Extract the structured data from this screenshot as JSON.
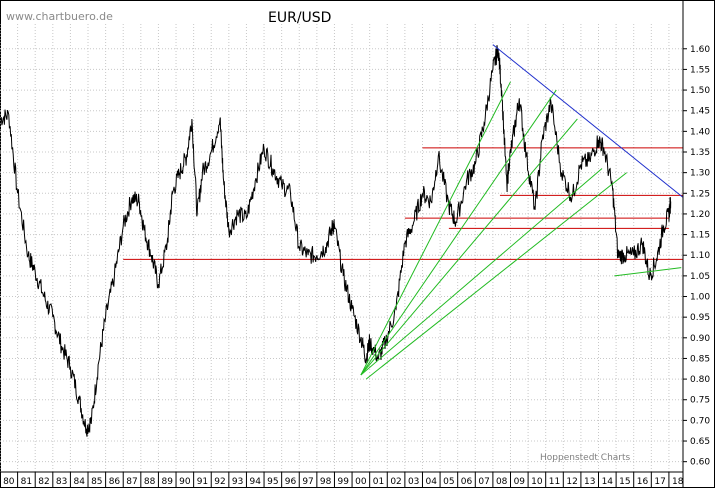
{
  "watermark": "www.chartbuero.de",
  "credit": "Hoppenstedt Charts",
  "colors": {
    "background": "#ffffff",
    "grid": "#c8c8c8",
    "price_line": "#000000",
    "support_resistance": "#cc0000",
    "fan_lines": "#22bb22",
    "downtrend": "#1f2fcc"
  },
  "chart_data": {
    "type": "line",
    "title": "EUR/USD",
    "xlabel": "",
    "ylabel": "",
    "ylim": [
      0.575,
      1.66
    ],
    "xlim": [
      1980,
      2018.8
    ],
    "grid": true,
    "y_axis_side": "right",
    "x_ticks": [
      "80",
      "81",
      "82",
      "83",
      "84",
      "85",
      "86",
      "87",
      "88",
      "89",
      "90",
      "91",
      "92",
      "93",
      "94",
      "95",
      "96",
      "97",
      "98",
      "99",
      "00",
      "01",
      "02",
      "03",
      "04",
      "05",
      "06",
      "07",
      "08",
      "09",
      "10",
      "11",
      "12",
      "13",
      "14",
      "15",
      "16",
      "17",
      "18"
    ],
    "y_ticks": [
      "0.60",
      "0.65",
      "0.70",
      "0.75",
      "0.80",
      "0.85",
      "0.90",
      "0.95",
      "1.00",
      "1.05",
      "1.10",
      "1.15",
      "1.20",
      "1.25",
      "1.30",
      "1.35",
      "1.40",
      "1.45",
      "1.50",
      "1.55",
      "1.60"
    ],
    "series": [
      {
        "x": [
          1980.0,
          1980.5,
          1981.0,
          1981.6,
          1982.0,
          1982.5,
          1983.0,
          1983.5,
          1984.0,
          1984.5,
          1984.9,
          1985.2,
          1985.6,
          1986.0,
          1986.5,
          1987.0,
          1987.5,
          1987.9,
          1988.2,
          1988.6,
          1989.0,
          1989.5,
          1989.8,
          1990.2,
          1990.6,
          1990.9,
          1991.2,
          1991.5,
          1992.0,
          1992.5,
          1992.7,
          1993.0,
          1993.5,
          1994.0,
          1994.5,
          1995.0,
          1995.5,
          1996.0,
          1996.5,
          1997.0,
          1997.5,
          1998.0,
          1998.5,
          1998.9,
          1999.0,
          1999.5,
          2000.0,
          2000.5,
          2000.8,
          2001.0,
          2001.5,
          2001.9,
          2002.5,
          2003.0,
          2003.5,
          2004.0,
          2004.5,
          2004.9,
          2005.5,
          2005.9,
          2006.5,
          2007.0,
          2007.5,
          2008.0,
          2008.3,
          2008.5,
          2008.8,
          2008.9,
          2009.2,
          2009.5,
          2009.9,
          2010.4,
          2010.8,
          2011.3,
          2011.9,
          2012.5,
          2013.0,
          2013.5,
          2014.0,
          2014.3,
          2014.8,
          2015.1,
          2015.5,
          2016.0,
          2016.5,
          2016.9,
          2017.3,
          2017.7,
          2018.0,
          2018.1
        ],
        "y": [
          1.43,
          1.44,
          1.25,
          1.1,
          1.06,
          1.0,
          0.95,
          0.88,
          0.83,
          0.75,
          0.68,
          0.7,
          0.84,
          0.95,
          1.05,
          1.17,
          1.24,
          1.23,
          1.16,
          1.1,
          1.03,
          1.13,
          1.25,
          1.3,
          1.34,
          1.43,
          1.2,
          1.3,
          1.35,
          1.43,
          1.28,
          1.16,
          1.2,
          1.19,
          1.28,
          1.36,
          1.31,
          1.27,
          1.25,
          1.12,
          1.1,
          1.1,
          1.12,
          1.17,
          1.17,
          1.05,
          0.97,
          0.9,
          0.85,
          0.89,
          0.85,
          0.89,
          0.97,
          1.13,
          1.18,
          1.25,
          1.23,
          1.34,
          1.22,
          1.18,
          1.28,
          1.32,
          1.42,
          1.55,
          1.6,
          1.5,
          1.26,
          1.32,
          1.4,
          1.48,
          1.34,
          1.21,
          1.38,
          1.47,
          1.3,
          1.24,
          1.32,
          1.33,
          1.38,
          1.36,
          1.26,
          1.1,
          1.1,
          1.1,
          1.13,
          1.05,
          1.09,
          1.17,
          1.2,
          1.23
        ]
      }
    ],
    "horizontal_lines": [
      {
        "y": 1.36,
        "x_start": 2004.0,
        "x_end": 2018.8
      },
      {
        "y": 1.245,
        "x_start": 2008.4,
        "x_end": 2018.8
      },
      {
        "y": 1.19,
        "x_start": 2003.0,
        "x_end": 2018.0
      },
      {
        "y": 1.165,
        "x_start": 2005.5,
        "x_end": 2018.0
      },
      {
        "y": 1.09,
        "x_start": 1987.0,
        "x_end": 2018.8
      }
    ],
    "trend_lines": [
      {
        "kind": "fan",
        "x1": 2000.5,
        "y1": 0.81,
        "x2": 2009.0,
        "y2": 1.52
      },
      {
        "kind": "fan",
        "x1": 2000.5,
        "y1": 0.81,
        "x2": 2011.6,
        "y2": 1.5
      },
      {
        "kind": "fan",
        "x1": 2000.5,
        "y1": 0.81,
        "x2": 2012.8,
        "y2": 1.43
      },
      {
        "kind": "fan",
        "x1": 2000.5,
        "y1": 0.81,
        "x2": 2014.2,
        "y2": 1.31
      },
      {
        "kind": "fan",
        "x1": 2000.8,
        "y1": 0.8,
        "x2": 2015.6,
        "y2": 1.3
      },
      {
        "kind": "support",
        "x1": 2014.9,
        "y1": 1.05,
        "x2": 2018.7,
        "y2": 1.07
      },
      {
        "kind": "downtrend",
        "x1": 2008.0,
        "y1": 1.61,
        "x2": 2018.8,
        "y2": 1.24
      }
    ]
  }
}
